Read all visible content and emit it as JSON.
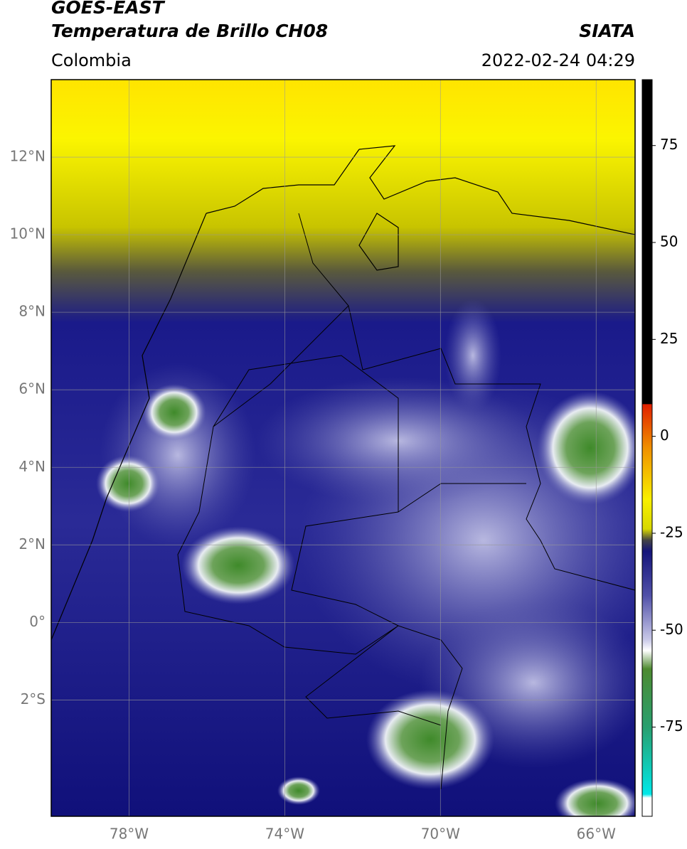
{
  "header": {
    "title": "GOES-EAST",
    "subtitle": "Temperatura de Brillo CH08",
    "source": "SIATA",
    "region": "Colombia",
    "datetime": "2022-02-24 04:29"
  },
  "map": {
    "lon_lim": [
      -80,
      -65
    ],
    "lat_lim": [
      -5,
      14
    ],
    "lat_ticks": [
      {
        "value": 12,
        "label": "12°N"
      },
      {
        "value": 10,
        "label": "10°N"
      },
      {
        "value": 8,
        "label": "8°N"
      },
      {
        "value": 6,
        "label": "6°N"
      },
      {
        "value": 4,
        "label": "4°N"
      },
      {
        "value": 2,
        "label": "2°N"
      },
      {
        "value": 0,
        "label": "0°"
      },
      {
        "value": -2,
        "label": "2°S"
      }
    ],
    "lon_ticks": [
      {
        "value": -78,
        "label": "78°W"
      },
      {
        "value": -74,
        "label": "74°W"
      },
      {
        "value": -70,
        "label": "70°W"
      },
      {
        "value": -66,
        "label": "66°W"
      }
    ]
  },
  "colorbar": {
    "lim": [
      -98,
      92
    ],
    "ticks": [
      75,
      50,
      25,
      0,
      -25,
      -50,
      -75
    ]
  }
}
